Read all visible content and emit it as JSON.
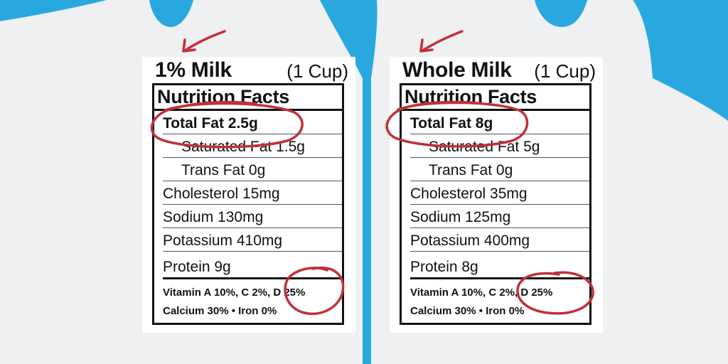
{
  "labels": [
    {
      "product": "1% Milk",
      "serving": "(1 Cup)",
      "facts_title": "Nutrition Facts",
      "total_fat": "Total Fat 2.5g",
      "saturated_fat": "Saturated Fat 1.5g",
      "trans_fat": "Trans Fat 0g",
      "cholesterol": "Cholesterol 15mg",
      "sodium": "Sodium 130mg",
      "potassium": "Potassium 410mg",
      "protein": "Protein 9g",
      "vitamins": "Vitamin A 10%, C 2%, D 25%",
      "minerals": "Calcium 30% • Iron 0%"
    },
    {
      "product": "Whole Milk",
      "serving": "(1 Cup)",
      "facts_title": "Nutrition Facts",
      "total_fat": "Total Fat 8g",
      "saturated_fat": "Saturated Fat 5g",
      "trans_fat": "Trans Fat 0g",
      "cholesterol": "Cholesterol 35mg",
      "sodium": "Sodium 125mg",
      "potassium": "Potassium 400mg",
      "protein": "Protein 8g",
      "vitamins": "Vitamin A 10%, C 2%, D 25%",
      "minerals": "Calcium 30% • Iron 0%"
    }
  ],
  "colors": {
    "background": "#29a8e0",
    "jug": "#eef0f2",
    "annotation": "#c0303a"
  },
  "icons": [
    "arrow-icon",
    "circle-annotation-icon"
  ]
}
